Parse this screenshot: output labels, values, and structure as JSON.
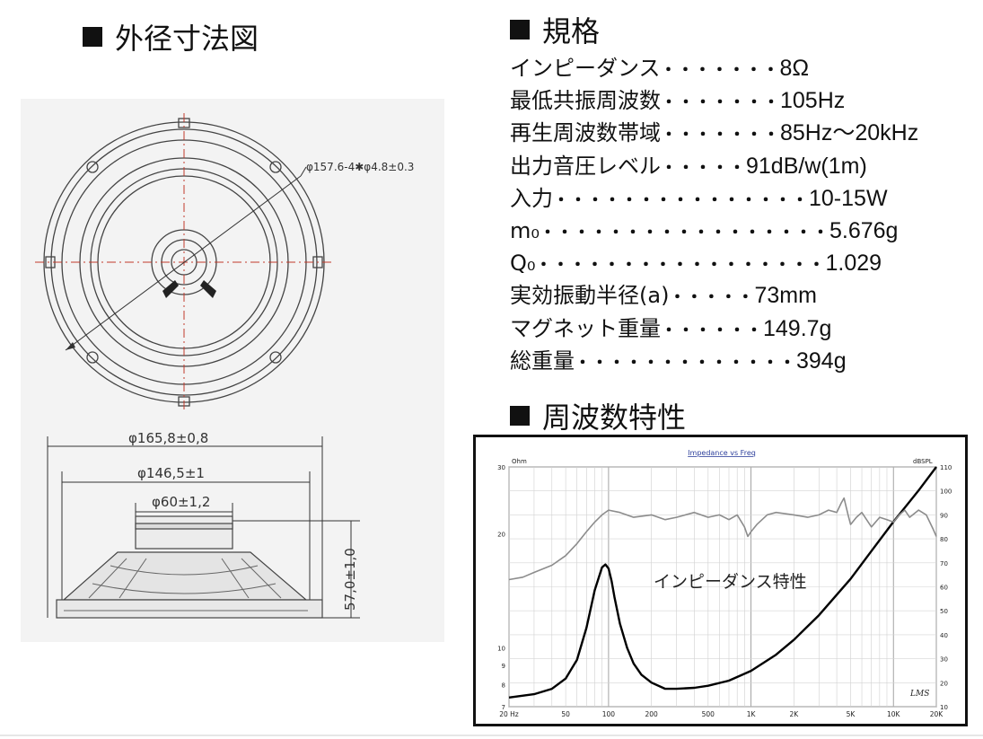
{
  "headings": {
    "dimensions": "外径寸法図",
    "specs": "規格",
    "frequency": "周波数特性"
  },
  "drawing": {
    "top_view_label": "φ157.6-4✱φ4.8±0.3",
    "outer_dia": "φ165,8±0,8",
    "basket_dia": "φ146,5±1",
    "magnet_dia": "φ60±1,2",
    "depth": "57,0±1,0"
  },
  "specs": [
    {
      "label": "インピーダンス",
      "dots": "・・・・・・・",
      "value": "8Ω"
    },
    {
      "label": "最低共振周波数",
      "dots": "・・・・・・・",
      "value": "105Hz"
    },
    {
      "label": "再生周波数帯域",
      "dots": "・・・・・・・",
      "value": "85Hz～20kHz"
    },
    {
      "label": "出力音圧レベル",
      "dots": "・・・・・",
      "value": "91dB/w(1m)"
    },
    {
      "label": "入力",
      "dots": "・・・・・・・・・・・・・・・",
      "value": "10-15W"
    },
    {
      "label": "m₀",
      "dots": "・・・・・・・・・・・・・・・・・",
      "value": "5.676g"
    },
    {
      "label": "Q₀",
      "dots": "・・・・・・・・・・・・・・・・・",
      "value": "1.029"
    },
    {
      "label": "実効振動半径(a)",
      "dots": "・・・・・",
      "value": "73mm"
    },
    {
      "label": "マグネット重量",
      "dots": "・・・・・・",
      "value": "149.7g"
    },
    {
      "label": "総重量",
      "dots": "・・・・・・・・・・・・・",
      "value": "394g"
    }
  ],
  "chart_data": {
    "type": "line",
    "title": "Impedance vs Freq",
    "left_unit": "Ohm",
    "right_unit": "dBSPL",
    "annotation": "インピーダンス特性",
    "watermark": "LMS",
    "x_scale": "log",
    "xlim": [
      20,
      20000
    ],
    "x_ticks": [
      20,
      50,
      100,
      200,
      500,
      1000,
      2000,
      5000,
      10000,
      20000
    ],
    "x_tick_labels": [
      "20 Hz",
      "50",
      "100",
      "200",
      "500",
      "1K",
      "2K",
      "5K",
      "10K",
      "20K"
    ],
    "left_scale": "log",
    "left_lim": [
      7,
      30
    ],
    "left_ticks": [
      7,
      8,
      9,
      10,
      20,
      30
    ],
    "left_tick_labels": [
      "7",
      "8",
      "9",
      "10",
      "20",
      "30"
    ],
    "right_lim": [
      10,
      110
    ],
    "right_ticks": [
      10,
      20,
      30,
      40,
      50,
      60,
      70,
      80,
      90,
      100,
      110
    ],
    "right_tick_labels": [
      "10",
      "20",
      "30",
      "40",
      "50",
      "60",
      "70",
      "80",
      "90",
      "100",
      "110"
    ],
    "grid": true,
    "series": [
      {
        "axis": "left",
        "color": "#000000",
        "x": [
          20,
          30,
          40,
          50,
          60,
          70,
          80,
          90,
          95,
          100,
          105,
          110,
          120,
          135,
          150,
          170,
          200,
          250,
          300,
          400,
          500,
          700,
          1000,
          1500,
          2000,
          3000,
          5000,
          7000,
          10000,
          15000,
          20000
        ],
        "y": [
          7.4,
          7.55,
          7.8,
          8.3,
          9.3,
          11.3,
          14.2,
          16.3,
          16.6,
          16.2,
          15.0,
          13.6,
          11.6,
          10.0,
          9.1,
          8.5,
          8.1,
          7.8,
          7.8,
          7.85,
          7.95,
          8.2,
          8.7,
          9.6,
          10.5,
          12.2,
          15.2,
          18.0,
          21.5,
          26.0,
          30.0
        ]
      },
      {
        "axis": "right",
        "color": "#8c8c8c",
        "x": [
          20,
          25,
          30,
          40,
          50,
          60,
          70,
          80,
          90,
          100,
          120,
          150,
          200,
          250,
          300,
          400,
          500,
          600,
          700,
          800,
          900,
          950,
          1000,
          1100,
          1300,
          1500,
          2000,
          2500,
          3000,
          3500,
          4000,
          4300,
          4500,
          4800,
          5000,
          5500,
          6000,
          7000,
          8000,
          9000,
          10000,
          11000,
          12000,
          13000,
          15000,
          17000,
          19000,
          20000
        ],
        "y": [
          63,
          64,
          66,
          69,
          73,
          78,
          83,
          87,
          90,
          92,
          91,
          89,
          90,
          88,
          89,
          91,
          89,
          90,
          88,
          90,
          85,
          81,
          83,
          86,
          90,
          91,
          90,
          89,
          90,
          92,
          91,
          95,
          97,
          90,
          86,
          89,
          91,
          85,
          89,
          88,
          87,
          90,
          92,
          89,
          92,
          90,
          84,
          81
        ]
      }
    ]
  }
}
